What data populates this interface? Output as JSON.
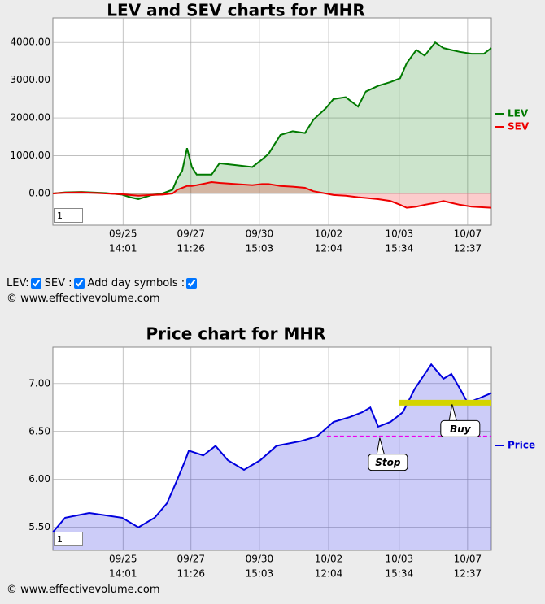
{
  "chart_data": [
    {
      "type": "area",
      "title": "LEV and SEV charts for MHR",
      "input": "1",
      "x": [
        0,
        2.8,
        6.5,
        12.1,
        15.8,
        17.6,
        19.5,
        22.3,
        25,
        27.3,
        28.4,
        29.5,
        30.6,
        31.7,
        32.8,
        36.2,
        38,
        41.7,
        45.5,
        47.7,
        49.2,
        51.9,
        54.7,
        57.5,
        59.4,
        62.2,
        64,
        66.8,
        69.6,
        71.4,
        74.2,
        77,
        79.2,
        80.7,
        82.9,
        84.8,
        87.2,
        89.1,
        90.9,
        92.8,
        95.5,
        98.3,
        100
      ],
      "series": [
        {
          "name": "LEV",
          "color": "#007a00",
          "values": [
            0,
            30,
            40,
            10,
            -30,
            -100,
            -150,
            -50,
            0,
            100,
            400,
            600,
            1200,
            700,
            500,
            500,
            800,
            750,
            700,
            900,
            1050,
            1550,
            1650,
            1600,
            1950,
            2250,
            2500,
            2550,
            2300,
            2700,
            2850,
            2950,
            3050,
            3450,
            3800,
            3650,
            4000,
            3850,
            3800,
            3750,
            3700,
            3700,
            3850
          ]
        },
        {
          "name": "SEV",
          "color": "#ee0000",
          "values": [
            0,
            20,
            30,
            0,
            -20,
            -40,
            -60,
            -40,
            -30,
            0,
            100,
            150,
            200,
            200,
            220,
            300,
            280,
            250,
            220,
            250,
            250,
            200,
            180,
            150,
            60,
            0,
            -40,
            -60,
            -100,
            -120,
            -150,
            -200,
            -300,
            -380,
            -350,
            -300,
            -250,
            -200,
            -250,
            -300,
            -350,
            -370,
            -380
          ]
        }
      ],
      "xlim": [
        0,
        100
      ],
      "xticks": [
        {
          "value": 16,
          "label": "09/25"
        },
        {
          "value": 31.5,
          "label": "09/27"
        },
        {
          "value": 47.1,
          "label": "09/30"
        },
        {
          "value": 62.9,
          "label": "10/02"
        },
        {
          "value": 79,
          "label": "10/03"
        },
        {
          "value": 94.6,
          "label": "10/07"
        }
      ],
      "xtick_times": [
        "14:01",
        "11:26",
        "15:03",
        "12:04",
        "15:34",
        "12:37"
      ],
      "ylim": [
        -840,
        4650
      ],
      "yticks": [
        {
          "value": 0,
          "label": "0.00"
        },
        {
          "value": 1000,
          "label": "1000.00"
        },
        {
          "value": 2000,
          "label": "2000.00"
        },
        {
          "value": 3000,
          "label": "3000.00"
        },
        {
          "value": 4000,
          "label": "4000.00"
        }
      ],
      "grid": true
    },
    {
      "type": "area",
      "title": "Price chart for MHR",
      "input": "1",
      "x": [
        0,
        2.8,
        8.3,
        15.8,
        19.5,
        23.2,
        26,
        28.4,
        30.2,
        31,
        34.3,
        37.1,
        39.9,
        43.6,
        47.3,
        51,
        56.6,
        60.3,
        64,
        67.7,
        70.5,
        72.4,
        74.2,
        77,
        79.8,
        82.6,
        86.3,
        89.1,
        90.9,
        92.8,
        94.6,
        97.4,
        100
      ],
      "series": [
        {
          "name": "Price",
          "color": "#0000dd",
          "values": [
            5.45,
            5.6,
            5.65,
            5.6,
            5.5,
            5.6,
            5.75,
            6.0,
            6.2,
            6.3,
            6.25,
            6.35,
            6.2,
            6.1,
            6.2,
            6.35,
            6.4,
            6.45,
            6.6,
            6.65,
            6.7,
            6.75,
            6.55,
            6.6,
            6.7,
            6.95,
            7.2,
            7.05,
            7.1,
            6.95,
            6.8,
            6.85,
            6.9
          ]
        }
      ],
      "lines": [
        {
          "label": "Stop",
          "value": 6.45,
          "x": [
            62.5,
            100
          ],
          "color": "#ee00ee",
          "style": "dashed"
        },
        {
          "label": "Buy",
          "value": 6.8,
          "x": [
            79,
            100
          ],
          "color": "#d4d400",
          "style": "solid"
        }
      ],
      "xlim": [
        0,
        100
      ],
      "xticks": [
        {
          "value": 16,
          "label": "09/25"
        },
        {
          "value": 31.5,
          "label": "09/27"
        },
        {
          "value": 47.1,
          "label": "09/30"
        },
        {
          "value": 62.9,
          "label": "10/02"
        },
        {
          "value": 79,
          "label": "10/03"
        },
        {
          "value": 94.6,
          "label": "10/07"
        }
      ],
      "xtick_times": [
        "14:01",
        "11:26",
        "15:03",
        "12:04",
        "15:34",
        "12:37"
      ],
      "ylim": [
        5.26,
        7.38
      ],
      "yticks": [
        {
          "value": 5.5,
          "label": "5.50"
        },
        {
          "value": 6,
          "label": "6.00"
        },
        {
          "value": 6.5,
          "label": "6.50"
        },
        {
          "value": 7,
          "label": "7.00"
        }
      ],
      "grid": true
    }
  ],
  "controls": [
    {
      "label": "LEV:",
      "checked": true
    },
    {
      "label": "SEV :",
      "checked": true
    },
    {
      "label": "Add day symbols :",
      "checked": true
    }
  ],
  "copyright": [
    "© www.effectivevolume.com",
    "© www.effectivevolume.com"
  ]
}
